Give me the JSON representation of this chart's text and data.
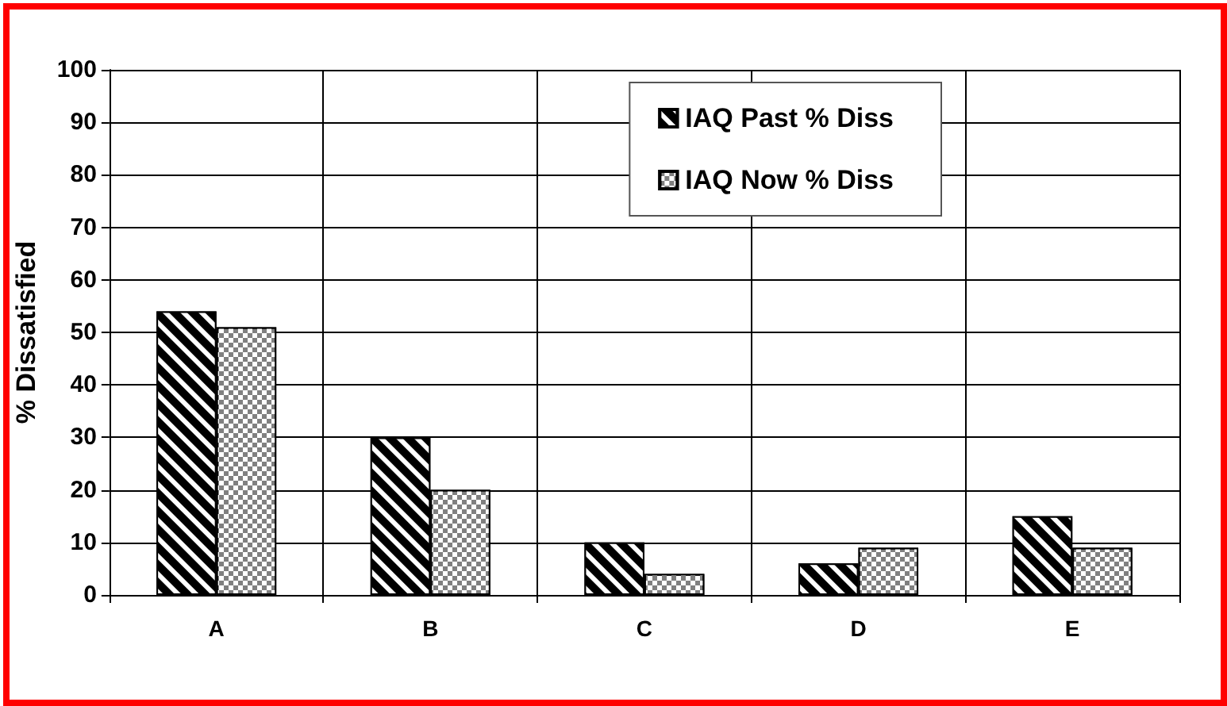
{
  "chart_data": {
    "type": "bar",
    "ylabel": "% Dissatisfied",
    "categories": [
      "A",
      "B",
      "C",
      "D",
      "E"
    ],
    "series": [
      {
        "name": "IAQ Past % Diss",
        "color": "#000000",
        "values": [
          54,
          30,
          10,
          6,
          15
        ]
      },
      {
        "name": "IAQ Now % Diss",
        "color": "#808080",
        "values": [
          51,
          20,
          4,
          9,
          9
        ]
      }
    ],
    "ylim": [
      0,
      100
    ],
    "yticks": [
      0,
      10,
      20,
      30,
      40,
      50,
      60,
      70,
      80,
      90,
      100
    ],
    "grid": true,
    "legend": "top right"
  }
}
